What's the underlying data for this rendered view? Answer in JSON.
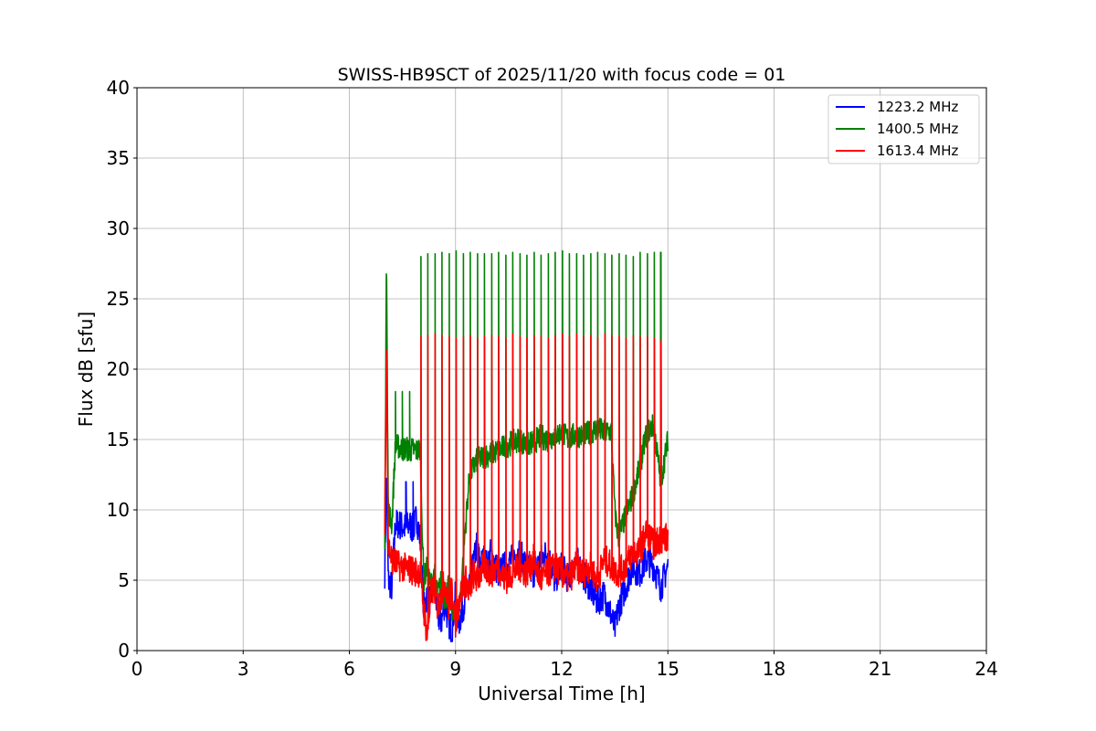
{
  "chart_data": {
    "type": "line",
    "title": "SWISS-HB9SCT of 2025/11/20 with focus code = 01",
    "xlabel": "Universal Time [h]",
    "ylabel": "Flux dB [sfu]",
    "xlim": [
      0,
      24
    ],
    "ylim": [
      0,
      40
    ],
    "xticks": [
      0,
      3,
      6,
      9,
      12,
      15,
      18,
      21,
      24
    ],
    "yticks": [
      0,
      5,
      10,
      15,
      20,
      25,
      30,
      35,
      40
    ],
    "grid": true,
    "legend_position": "top-right",
    "series": [
      {
        "name": "1223.2 MHz",
        "color": "#0000ff",
        "x": [
          7.0,
          7.05,
          7.1,
          7.2,
          7.3,
          7.4,
          7.5,
          7.6,
          7.7,
          7.8,
          7.9,
          8.0,
          8.1,
          8.2,
          8.3,
          8.4,
          8.5,
          8.6,
          8.7,
          8.8,
          8.9,
          9.0,
          9.1,
          9.2,
          9.3,
          9.4,
          9.5,
          9.6,
          9.7,
          9.8,
          9.9,
          10.0,
          10.2,
          10.4,
          10.6,
          10.8,
          11.0,
          11.2,
          11.4,
          11.6,
          11.8,
          12.0,
          12.2,
          12.4,
          12.6,
          12.8,
          13.0,
          13.2,
          13.4,
          13.5,
          13.6,
          13.8,
          14.0,
          14.2,
          14.4,
          14.6,
          14.8,
          15.0
        ],
        "y": [
          5.5,
          13.0,
          5.0,
          4.5,
          9.0,
          9.0,
          8.8,
          8.7,
          9.0,
          8.6,
          9.5,
          8.0,
          3.0,
          4.0,
          3.5,
          5.0,
          2.5,
          2.0,
          3.5,
          2.0,
          1.5,
          4.0,
          2.0,
          3.0,
          4.0,
          5.0,
          6.0,
          7.5,
          6.0,
          6.5,
          6.0,
          7.0,
          5.5,
          6.0,
          6.5,
          7.0,
          6.0,
          5.5,
          6.5,
          7.0,
          5.0,
          6.0,
          5.0,
          6.5,
          5.5,
          4.5,
          3.5,
          4.0,
          2.5,
          1.5,
          3.0,
          4.5,
          6.0,
          5.5,
          6.5,
          6.0,
          4.5,
          6.0
        ],
        "spikes": [
          7.6,
          7.8
        ]
      },
      {
        "name": "1400.5 MHz",
        "color": "#008000",
        "x": [
          7.0,
          7.05,
          7.1,
          7.2,
          7.3,
          7.4,
          7.5,
          7.6,
          7.7,
          7.8,
          7.9,
          8.0,
          8.1,
          8.2,
          8.3,
          8.4,
          8.5,
          8.6,
          8.7,
          8.8,
          8.9,
          9.0,
          9.1,
          9.2,
          9.3,
          9.4,
          9.5,
          9.6,
          9.8,
          10.0,
          10.2,
          10.4,
          10.6,
          10.8,
          11.0,
          11.2,
          11.4,
          11.6,
          11.8,
          12.0,
          12.2,
          12.4,
          12.6,
          12.8,
          13.0,
          13.2,
          13.4,
          13.5,
          13.6,
          13.8,
          14.0,
          14.2,
          14.4,
          14.6,
          14.8,
          15.0
        ],
        "y": [
          7.5,
          28.2,
          10.0,
          9.0,
          14.5,
          14.5,
          14.3,
          14.4,
          14.2,
          14.3,
          14.2,
          14.3,
          5.0,
          6.0,
          4.5,
          5.5,
          4.0,
          5.0,
          3.5,
          4.5,
          3.0,
          2.0,
          3.0,
          6.0,
          9.5,
          12.5,
          13.0,
          13.5,
          13.8,
          14.0,
          14.2,
          14.5,
          14.8,
          15.0,
          14.6,
          14.8,
          15.2,
          15.0,
          15.3,
          15.5,
          15.0,
          15.4,
          15.2,
          15.5,
          15.8,
          15.5,
          15.6,
          10.0,
          8.0,
          9.5,
          11.0,
          13.0,
          15.5,
          16.0,
          12.0,
          15.0
        ],
        "spikes": [
          7.3,
          7.5,
          7.7,
          8.02,
          8.22,
          8.42,
          8.62,
          8.82,
          9.02,
          9.22,
          9.42,
          9.62,
          9.82,
          10.02,
          10.22,
          10.42,
          10.62,
          10.82,
          11.02,
          11.22,
          11.42,
          11.62,
          11.82,
          12.02,
          12.22,
          12.42,
          12.62,
          12.82,
          13.02,
          13.22,
          13.42,
          13.62,
          13.82,
          14.02,
          14.22,
          14.42,
          14.62,
          14.8
        ]
      },
      {
        "name": "1613.4 MHz",
        "color": "#ff0000",
        "x": [
          7.0,
          7.05,
          7.1,
          7.2,
          7.3,
          7.4,
          7.5,
          7.6,
          7.7,
          7.8,
          7.9,
          8.0,
          8.1,
          8.2,
          8.3,
          8.4,
          8.5,
          8.6,
          8.7,
          8.8,
          8.9,
          9.0,
          9.1,
          9.2,
          9.3,
          9.4,
          9.5,
          9.6,
          9.8,
          10.0,
          10.2,
          10.4,
          10.6,
          10.8,
          11.0,
          11.2,
          11.4,
          11.6,
          11.8,
          12.0,
          12.2,
          12.4,
          12.6,
          12.8,
          13.0,
          13.2,
          13.4,
          13.6,
          13.8,
          14.0,
          14.2,
          14.4,
          14.6,
          14.8,
          15.0
        ],
        "y": [
          8.0,
          22.3,
          7.5,
          6.5,
          6.3,
          6.0,
          6.0,
          5.8,
          5.8,
          5.7,
          5.6,
          5.6,
          3.0,
          1.0,
          4.0,
          4.5,
          3.0,
          4.0,
          5.0,
          3.0,
          4.5,
          2.0,
          3.5,
          4.5,
          5.0,
          4.0,
          5.5,
          5.0,
          6.0,
          5.5,
          6.0,
          5.0,
          5.5,
          6.0,
          5.5,
          6.5,
          5.0,
          5.5,
          6.0,
          5.5,
          5.0,
          6.0,
          5.5,
          6.0,
          5.0,
          6.5,
          6.0,
          5.5,
          6.0,
          7.0,
          7.0,
          8.5,
          7.5,
          8.0,
          8.0
        ],
        "spikes": [
          8.02,
          8.22,
          8.42,
          8.62,
          8.82,
          9.02,
          9.22,
          9.42,
          9.62,
          9.82,
          10.02,
          10.22,
          10.42,
          10.62,
          10.82,
          11.02,
          11.22,
          11.42,
          11.62,
          11.82,
          12.02,
          12.22,
          12.42,
          12.62,
          12.82,
          13.02,
          13.22,
          13.42,
          13.62,
          13.82,
          14.02,
          14.22,
          14.42,
          14.62,
          14.8
        ]
      }
    ],
    "spike_peaks": {
      "1400.5 MHz": [
        18.4,
        18.4,
        18.4,
        28.0,
        28.2,
        28.2,
        28.3,
        28.2,
        28.4,
        28.2,
        28.3,
        28.2,
        28.2,
        28.2,
        28.3,
        28.1,
        28.3,
        28.2,
        28.1,
        28.3,
        28.1,
        28.2,
        28.3,
        28.4,
        28.2,
        28.2,
        28.1,
        28.2,
        28.3,
        28.2,
        28.1,
        28.2,
        28.1,
        28.0,
        28.3,
        28.2,
        28.3,
        28.3
      ],
      "1613.4 MHz": [
        22.3,
        22.4,
        22.5,
        22.4,
        22.3,
        22.2,
        22.3,
        22.4,
        22.2,
        22.3,
        22.4,
        22.3,
        22.2,
        22.5,
        22.3,
        22.2,
        22.4,
        22.3,
        22.2,
        22.4,
        22.5,
        22.3,
        22.5,
        22.3,
        22.4,
        22.2,
        22.5,
        22.4,
        22.3,
        22.2,
        22.4,
        22.3,
        22.3,
        22.2,
        22.0
      ]
    }
  }
}
